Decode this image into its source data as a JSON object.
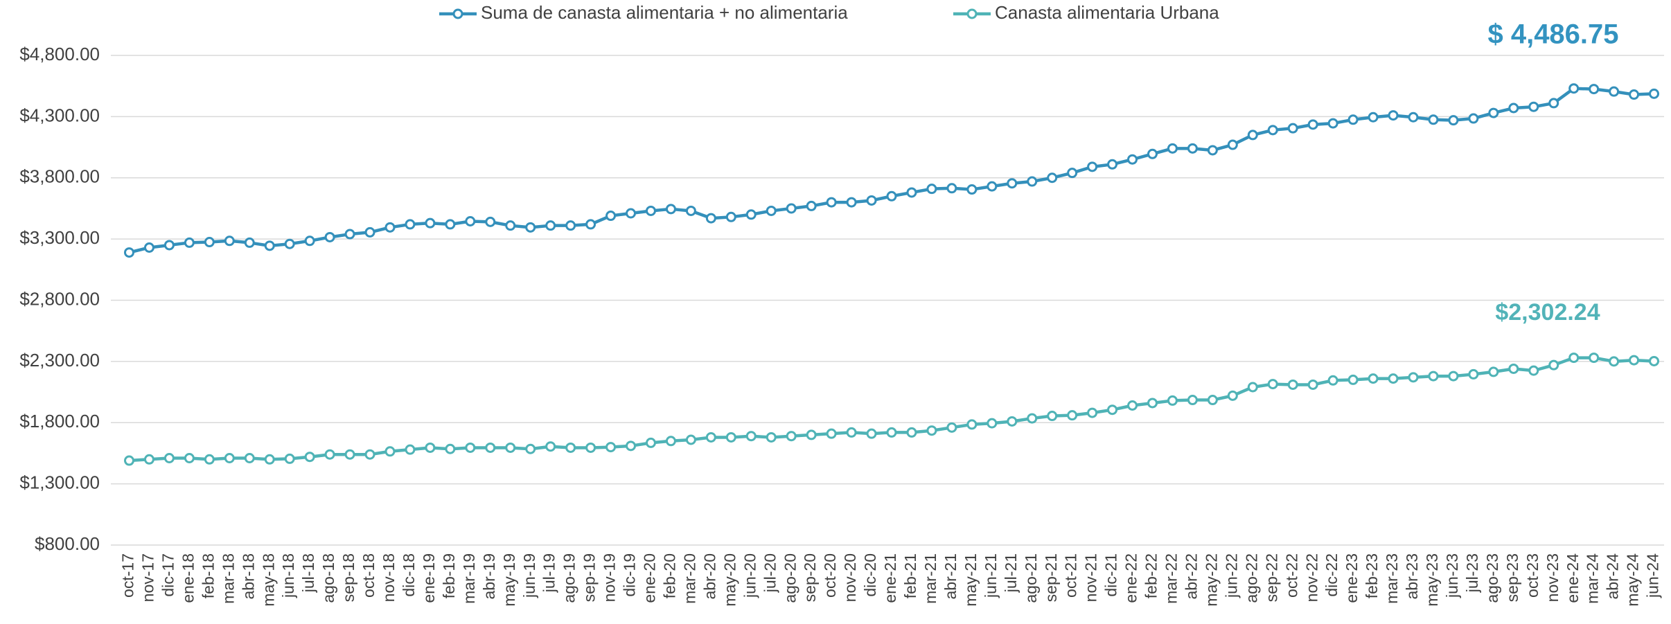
{
  "chart_data": {
    "type": "line",
    "categories": [
      "oct-17",
      "nov-17",
      "dic-17",
      "ene-18",
      "feb-18",
      "mar-18",
      "abr-18",
      "may-18",
      "jun-18",
      "jul-18",
      "ago-18",
      "sep-18",
      "oct-18",
      "nov-18",
      "dic-18",
      "ene-19",
      "feb-19",
      "mar-19",
      "abr-19",
      "may-19",
      "jun-19",
      "jul-19",
      "ago-19",
      "sep-19",
      "nov-19",
      "dic-19",
      "ene-20",
      "feb-20",
      "mar-20",
      "abr-20",
      "may-20",
      "jun-20",
      "jul-20",
      "ago-20",
      "sep-20",
      "oct-20",
      "nov-20",
      "dic-20",
      "ene-21",
      "feb-21",
      "mar-21",
      "abr-21",
      "may-21",
      "jun-21",
      "jul-21",
      "ago-21",
      "sep-21",
      "oct-21",
      "nov-21",
      "dic-21",
      "ene-22",
      "feb-22",
      "mar-22",
      "abr-22",
      "may-22",
      "jun-22",
      "ago-22",
      "sep-22",
      "oct-22",
      "nov-22",
      "dic-22",
      "ene-23",
      "feb-23",
      "mar-23",
      "abr-23",
      "may-23",
      "jun-23",
      "jul-23",
      "ago-23",
      "sep-23",
      "oct-23",
      "nov-23",
      "ene-24",
      "mar-24",
      "abr-24",
      "may-24",
      "jun-24"
    ],
    "series": [
      {
        "name": "Suma de canasta alimentaria + no alimentaria",
        "color": "#3490bb",
        "values": [
          3190,
          3230,
          3250,
          3270,
          3275,
          3285,
          3270,
          3245,
          3260,
          3285,
          3315,
          3340,
          3355,
          3395,
          3420,
          3430,
          3420,
          3445,
          3440,
          3410,
          3395,
          3410,
          3410,
          3420,
          3490,
          3510,
          3530,
          3545,
          3530,
          3470,
          3480,
          3500,
          3530,
          3550,
          3570,
          3600,
          3600,
          3615,
          3650,
          3680,
          3710,
          3715,
          3705,
          3730,
          3755,
          3770,
          3800,
          3840,
          3890,
          3910,
          3950,
          3995,
          4040,
          4040,
          4025,
          4070,
          4150,
          4190,
          4205,
          4235,
          4245,
          4275,
          4295,
          4310,
          4295,
          4275,
          4270,
          4285,
          4330,
          4370,
          4380,
          4410,
          4530,
          4525,
          4505,
          4480,
          4486.75
        ]
      },
      {
        "name": "Canasta alimentaria Urbana",
        "color": "#4fb3b6",
        "values": [
          1490,
          1500,
          1510,
          1510,
          1500,
          1510,
          1510,
          1500,
          1505,
          1520,
          1540,
          1540,
          1540,
          1565,
          1580,
          1595,
          1585,
          1595,
          1595,
          1595,
          1585,
          1605,
          1595,
          1595,
          1600,
          1610,
          1635,
          1650,
          1660,
          1680,
          1680,
          1690,
          1680,
          1690,
          1700,
          1710,
          1720,
          1710,
          1720,
          1720,
          1735,
          1760,
          1785,
          1795,
          1810,
          1835,
          1855,
          1860,
          1880,
          1905,
          1940,
          1960,
          1980,
          1985,
          1985,
          2020,
          2090,
          2115,
          2110,
          2110,
          2145,
          2150,
          2160,
          2160,
          2170,
          2180,
          2180,
          2195,
          2215,
          2240,
          2225,
          2270,
          2330,
          2330,
          2300,
          2310,
          2302.24
        ]
      }
    ],
    "annotations": [
      {
        "text": "$ 4,486.75",
        "color": "#3393c0"
      },
      {
        "text": "$2,302.24",
        "color": "#52b3b8"
      }
    ],
    "ylim": [
      800,
      4800
    ],
    "yticks": [
      {
        "value": 800,
        "label": "$800.00"
      },
      {
        "value": 1300,
        "label": "$1,300.00"
      },
      {
        "value": 1800,
        "label": "$1,800.00"
      },
      {
        "value": 2300,
        "label": "$2,300.00"
      },
      {
        "value": 2800,
        "label": "$2,800.00"
      },
      {
        "value": 3300,
        "label": "$3,300.00"
      },
      {
        "value": 3800,
        "label": "$3,800.00"
      },
      {
        "value": 4300,
        "label": "$4,300.00"
      },
      {
        "value": 4800,
        "label": "$4,800.00"
      }
    ],
    "grid": true,
    "legend": "top"
  }
}
